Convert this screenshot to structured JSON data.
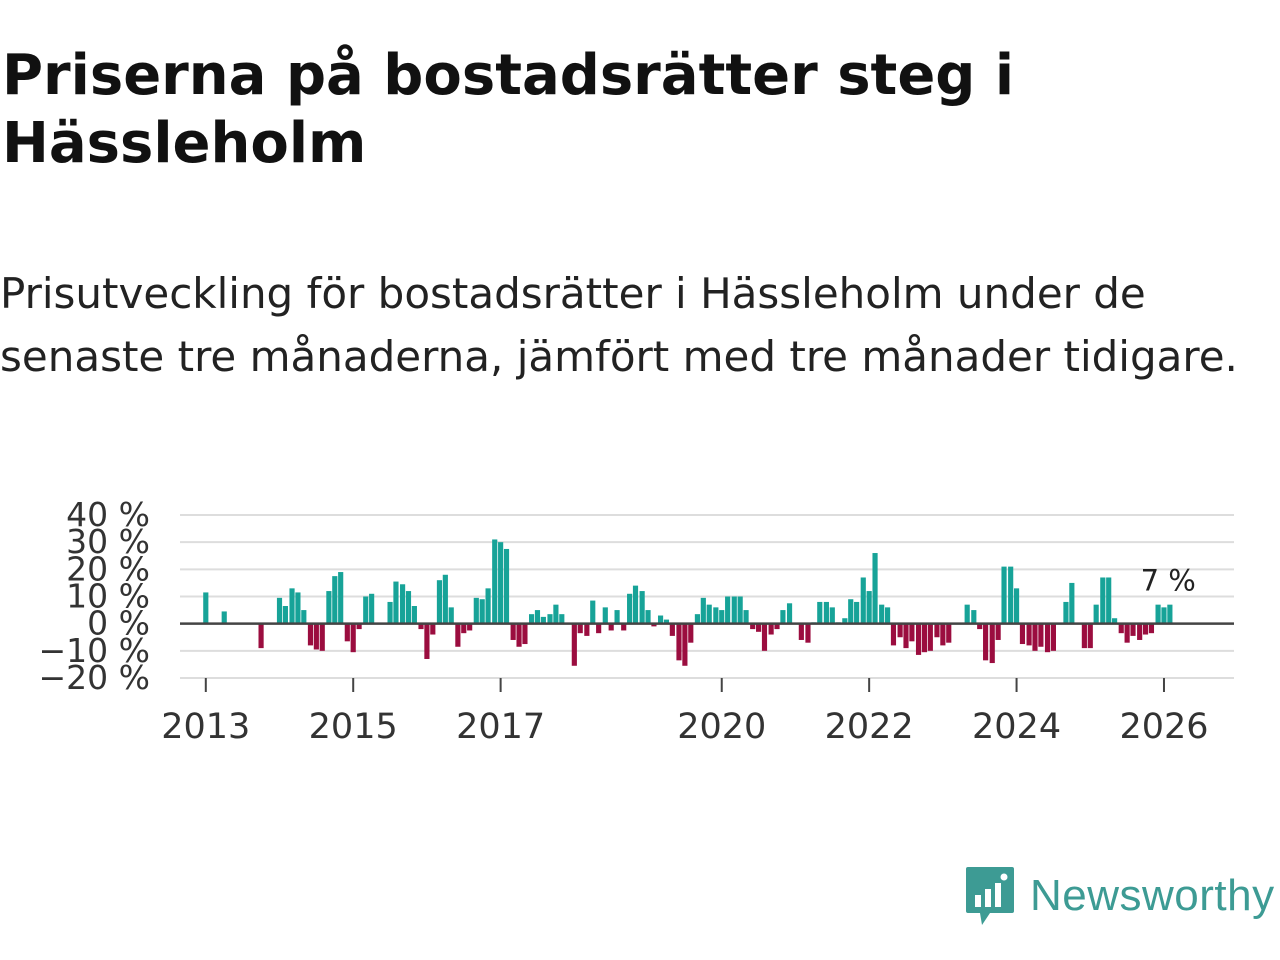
{
  "title": "Priserna på bostadsrätter steg i Hässleholm",
  "subtitle": "Prisutveckling för bostadsrätter i Hässleholm under de senaste tre månaderna, jämfört med tre månader tidigare.",
  "brand": {
    "name": "Newsworthy",
    "color": "#3d9b94"
  },
  "colors": {
    "positive": "#17a398",
    "negative": "#9b0d3f",
    "grid": "#dddddd",
    "axis": "#444444",
    "text": "#333333"
  },
  "chart_data": {
    "type": "bar",
    "ylabel": "",
    "xlabel": "",
    "ylim": [
      -20,
      40
    ],
    "yticks": [
      40,
      30,
      20,
      10,
      0,
      -10,
      -20
    ],
    "ytick_labels": [
      "40 %",
      "30 %",
      "20 %",
      "10 %",
      "0 %",
      "−10 %",
      "−20 %"
    ],
    "xlim": [
      2012.65,
      2026.95
    ],
    "xticks": [
      2013,
      2015,
      2017,
      2020,
      2022,
      2024,
      2026
    ],
    "xtick_labels": [
      "2013",
      "2015",
      "2017",
      "2020",
      "2022",
      "2024",
      "2026"
    ],
    "end_label": "7 %",
    "bar_width_years": 0.07,
    "series": [
      {
        "x": 2013.0,
        "v": 11.5
      },
      {
        "x": 2013.25,
        "v": 4.5
      },
      {
        "x": 2013.75,
        "v": -9
      },
      {
        "x": 2014.0,
        "v": 9.5
      },
      {
        "x": 2014.08,
        "v": 6.5
      },
      {
        "x": 2014.17,
        "v": 13
      },
      {
        "x": 2014.25,
        "v": 11.5
      },
      {
        "x": 2014.33,
        "v": 5
      },
      {
        "x": 2014.42,
        "v": -8
      },
      {
        "x": 2014.5,
        "v": -9.5
      },
      {
        "x": 2014.58,
        "v": -10
      },
      {
        "x": 2014.67,
        "v": 12
      },
      {
        "x": 2014.75,
        "v": 17.5
      },
      {
        "x": 2014.83,
        "v": 19
      },
      {
        "x": 2014.92,
        "v": -6.5
      },
      {
        "x": 2015.0,
        "v": -10.5
      },
      {
        "x": 2015.08,
        "v": -2
      },
      {
        "x": 2015.17,
        "v": 10
      },
      {
        "x": 2015.25,
        "v": 11
      },
      {
        "x": 2015.5,
        "v": 8
      },
      {
        "x": 2015.58,
        "v": 15.5
      },
      {
        "x": 2015.67,
        "v": 14.5
      },
      {
        "x": 2015.75,
        "v": 12
      },
      {
        "x": 2015.83,
        "v": 6.5
      },
      {
        "x": 2015.92,
        "v": -2
      },
      {
        "x": 2016.0,
        "v": -13
      },
      {
        "x": 2016.08,
        "v": -4
      },
      {
        "x": 2016.17,
        "v": 16
      },
      {
        "x": 2016.25,
        "v": 18
      },
      {
        "x": 2016.33,
        "v": 6
      },
      {
        "x": 2016.42,
        "v": -8.5
      },
      {
        "x": 2016.5,
        "v": -3.5
      },
      {
        "x": 2016.58,
        "v": -2.5
      },
      {
        "x": 2016.67,
        "v": 9.5
      },
      {
        "x": 2016.75,
        "v": 9
      },
      {
        "x": 2016.83,
        "v": 13
      },
      {
        "x": 2016.92,
        "v": 31
      },
      {
        "x": 2017.0,
        "v": 30
      },
      {
        "x": 2017.08,
        "v": 27.5
      },
      {
        "x": 2017.17,
        "v": -6
      },
      {
        "x": 2017.25,
        "v": -8.5
      },
      {
        "x": 2017.33,
        "v": -7.5
      },
      {
        "x": 2017.42,
        "v": 3.5
      },
      {
        "x": 2017.5,
        "v": 5
      },
      {
        "x": 2017.58,
        "v": 2.5
      },
      {
        "x": 2017.67,
        "v": 3.5
      },
      {
        "x": 2017.75,
        "v": 7
      },
      {
        "x": 2017.83,
        "v": 3.5
      },
      {
        "x": 2018.0,
        "v": -15.5
      },
      {
        "x": 2018.08,
        "v": -3.5
      },
      {
        "x": 2018.17,
        "v": -4.5
      },
      {
        "x": 2018.25,
        "v": 8.5
      },
      {
        "x": 2018.33,
        "v": -3.5
      },
      {
        "x": 2018.42,
        "v": 6
      },
      {
        "x": 2018.5,
        "v": -2.5
      },
      {
        "x": 2018.58,
        "v": 5
      },
      {
        "x": 2018.67,
        "v": -2.5
      },
      {
        "x": 2018.75,
        "v": 11
      },
      {
        "x": 2018.83,
        "v": 14
      },
      {
        "x": 2018.92,
        "v": 12
      },
      {
        "x": 2019.0,
        "v": 5
      },
      {
        "x": 2019.08,
        "v": -1
      },
      {
        "x": 2019.17,
        "v": 3
      },
      {
        "x": 2019.25,
        "v": 1.5
      },
      {
        "x": 2019.33,
        "v": -4.5
      },
      {
        "x": 2019.42,
        "v": -13.5
      },
      {
        "x": 2019.5,
        "v": -15.5
      },
      {
        "x": 2019.58,
        "v": -7
      },
      {
        "x": 2019.67,
        "v": 3.5
      },
      {
        "x": 2019.75,
        "v": 9.5
      },
      {
        "x": 2019.83,
        "v": 7
      },
      {
        "x": 2019.92,
        "v": 6
      },
      {
        "x": 2020.0,
        "v": 5
      },
      {
        "x": 2020.08,
        "v": 10
      },
      {
        "x": 2020.17,
        "v": 10
      },
      {
        "x": 2020.25,
        "v": 10
      },
      {
        "x": 2020.33,
        "v": 5
      },
      {
        "x": 2020.42,
        "v": -2
      },
      {
        "x": 2020.5,
        "v": -3
      },
      {
        "x": 2020.58,
        "v": -10
      },
      {
        "x": 2020.67,
        "v": -4
      },
      {
        "x": 2020.75,
        "v": -2
      },
      {
        "x": 2020.83,
        "v": 5
      },
      {
        "x": 2020.92,
        "v": 7.5
      },
      {
        "x": 2021.08,
        "v": -6
      },
      {
        "x": 2021.17,
        "v": -7
      },
      {
        "x": 2021.25,
        "v": 0.5
      },
      {
        "x": 2021.33,
        "v": 8
      },
      {
        "x": 2021.42,
        "v": 8
      },
      {
        "x": 2021.5,
        "v": 6
      },
      {
        "x": 2021.58,
        "v": 0.5
      },
      {
        "x": 2021.67,
        "v": 2
      },
      {
        "x": 2021.75,
        "v": 9
      },
      {
        "x": 2021.83,
        "v": 8
      },
      {
        "x": 2021.92,
        "v": 17
      },
      {
        "x": 2022.0,
        "v": 12
      },
      {
        "x": 2022.08,
        "v": 26
      },
      {
        "x": 2022.17,
        "v": 7
      },
      {
        "x": 2022.25,
        "v": 6
      },
      {
        "x": 2022.33,
        "v": -8
      },
      {
        "x": 2022.42,
        "v": -5
      },
      {
        "x": 2022.5,
        "v": -9
      },
      {
        "x": 2022.58,
        "v": -6.5
      },
      {
        "x": 2022.67,
        "v": -11.5
      },
      {
        "x": 2022.75,
        "v": -10.5
      },
      {
        "x": 2022.83,
        "v": -10
      },
      {
        "x": 2022.92,
        "v": -5
      },
      {
        "x": 2023.0,
        "v": -8
      },
      {
        "x": 2023.08,
        "v": -7
      },
      {
        "x": 2023.33,
        "v": 7
      },
      {
        "x": 2023.42,
        "v": 5
      },
      {
        "x": 2023.5,
        "v": -2
      },
      {
        "x": 2023.58,
        "v": -13.5
      },
      {
        "x": 2023.67,
        "v": -14.5
      },
      {
        "x": 2023.75,
        "v": -6
      },
      {
        "x": 2023.83,
        "v": 21
      },
      {
        "x": 2023.92,
        "v": 21
      },
      {
        "x": 2024.0,
        "v": 13
      },
      {
        "x": 2024.08,
        "v": -7.5
      },
      {
        "x": 2024.17,
        "v": -8
      },
      {
        "x": 2024.25,
        "v": -10
      },
      {
        "x": 2024.33,
        "v": -8.5
      },
      {
        "x": 2024.42,
        "v": -10.5
      },
      {
        "x": 2024.5,
        "v": -10
      },
      {
        "x": 2024.67,
        "v": 8
      },
      {
        "x": 2024.75,
        "v": 15
      },
      {
        "x": 2024.92,
        "v": -9
      },
      {
        "x": 2025.0,
        "v": -9
      },
      {
        "x": 2025.08,
        "v": 7
      },
      {
        "x": 2025.17,
        "v": 17
      },
      {
        "x": 2025.25,
        "v": 17
      },
      {
        "x": 2025.33,
        "v": 2
      },
      {
        "x": 2025.42,
        "v": -3.5
      },
      {
        "x": 2025.5,
        "v": -7
      },
      {
        "x": 2025.58,
        "v": -4.5
      },
      {
        "x": 2025.67,
        "v": -6
      },
      {
        "x": 2025.75,
        "v": -4
      },
      {
        "x": 2025.83,
        "v": -3.5
      },
      {
        "x": 2025.92,
        "v": 7
      },
      {
        "x": 2026.0,
        "v": 6
      },
      {
        "x": 2026.08,
        "v": 7
      }
    ]
  }
}
